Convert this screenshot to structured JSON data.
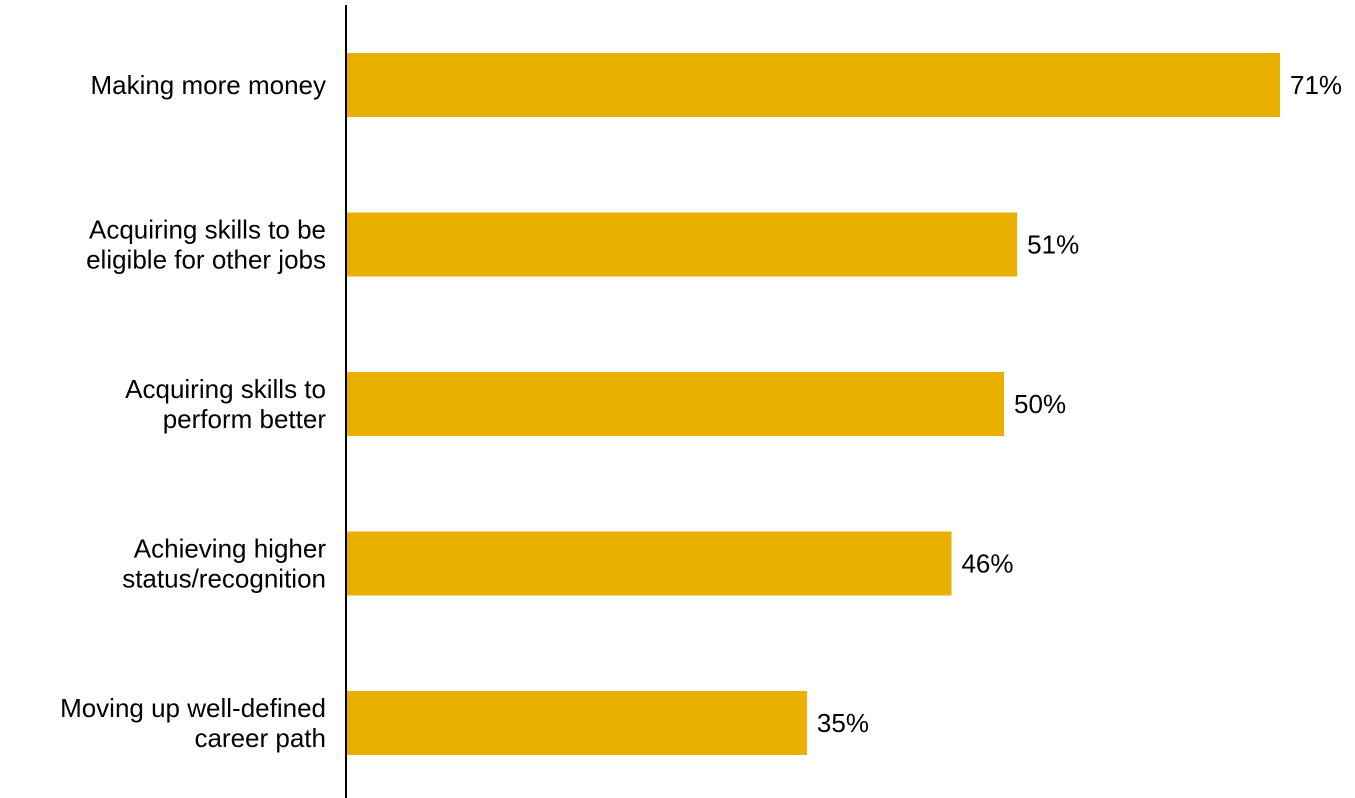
{
  "chart_data": {
    "type": "bar",
    "orientation": "horizontal",
    "categories": [
      [
        "Making more money"
      ],
      [
        "Acquiring skills to be",
        "eligible for other jobs"
      ],
      [
        "Acquiring skills to",
        "perform better"
      ],
      [
        "Achieving higher",
        "status/recognition"
      ],
      [
        "Moving up well-defined",
        "career path"
      ]
    ],
    "values": [
      71,
      51,
      50,
      46,
      35
    ],
    "value_labels": [
      "71%",
      "51%",
      "50%",
      "46%",
      "35%"
    ],
    "unit": "%",
    "xlim": [
      0,
      71
    ],
    "grid": false,
    "legend": "none",
    "colors": {
      "bar": "#EAB000",
      "axis": "#000000",
      "text": "#000000"
    }
  }
}
